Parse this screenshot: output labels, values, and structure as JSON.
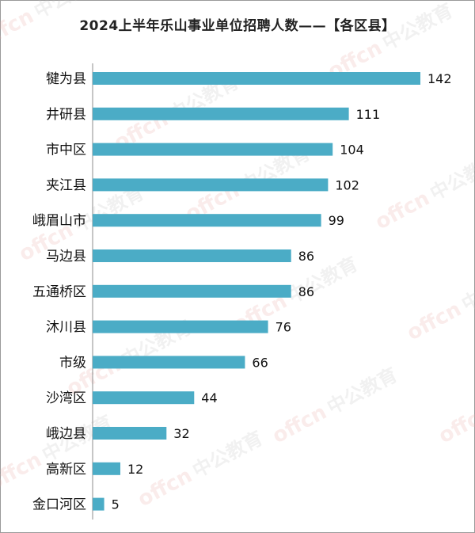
{
  "chart_data": {
    "type": "bar",
    "orientation": "horizontal",
    "title": "2024上半年乐山事业单位招聘人数——【各区县】",
    "categories": [
      "犍为县",
      "井研县",
      "市中区",
      "夹江县",
      "峨眉山市",
      "马边县",
      "五通桥区",
      "沐川县",
      "市级",
      "沙湾区",
      "峨边县",
      "高新区",
      "金口河区"
    ],
    "values": [
      142,
      111,
      104,
      102,
      99,
      86,
      86,
      76,
      66,
      44,
      32,
      12,
      5
    ],
    "xlim": [
      0,
      142
    ],
    "grid": false,
    "legend": "none",
    "data_labels": true,
    "bar_color": "#4bacc6"
  },
  "watermark": {
    "brand_latin": "offcn",
    "brand_cn": "中公教育"
  }
}
